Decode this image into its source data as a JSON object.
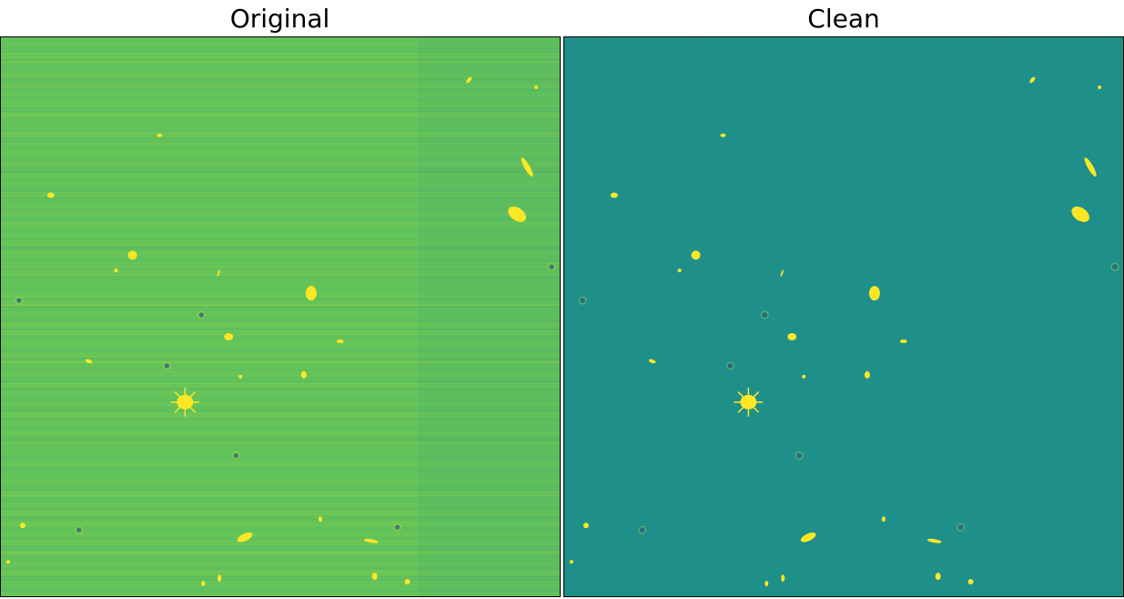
{
  "panels": [
    {
      "title": "Original",
      "background": "#63c35a",
      "noise_color": "#3f9e76"
    },
    {
      "title": "Clean",
      "background": "#1f8f8a",
      "noise_color": "#27877f"
    }
  ],
  "colors": {
    "source_bright": "#fde725",
    "source_mid": "#b5de2b",
    "source_dark": "#3b528b"
  }
}
